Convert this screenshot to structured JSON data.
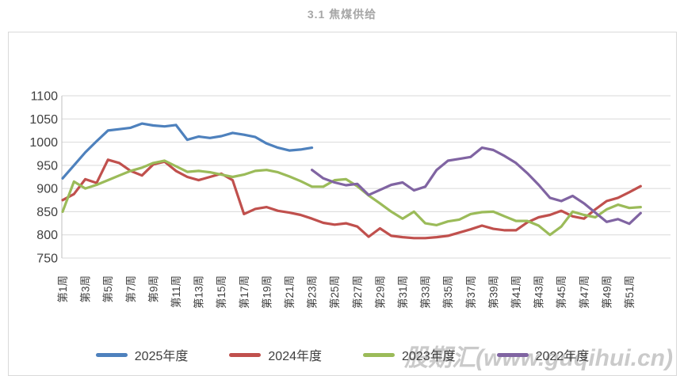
{
  "section_title": "3.1 焦煤供给",
  "watermark": "股期汇(www.guqihui.cn)",
  "chart_data": {
    "type": "line",
    "title": "3.1 焦煤供给",
    "xlabel": "",
    "ylabel": "",
    "ylim": [
      750,
      1100
    ],
    "y_ticks": [
      750,
      800,
      850,
      900,
      950,
      1000,
      1050,
      1100
    ],
    "x_weeks_total": 52,
    "x_tick_labels": [
      "第1周",
      "第3周",
      "第5周",
      "第7周",
      "第9周",
      "第11周",
      "第13周",
      "第15周",
      "第17周",
      "第19周",
      "第21周",
      "第23周",
      "第25周",
      "第27周",
      "第29周",
      "第31周",
      "第33周",
      "第35周",
      "第37周",
      "第39周",
      "第41周",
      "第43周",
      "第45周",
      "第47周",
      "第49周",
      "第51周"
    ],
    "grid": true,
    "legend_position": "bottom",
    "axis_color": "#bfbfbf",
    "grid_color": "#d9d9d9",
    "tick_label_color": "#404040",
    "series": [
      {
        "name": "2025年度",
        "color": "#4E81BD",
        "start_week": 1,
        "values": [
          922,
          950,
          978,
          1002,
          1025,
          1028,
          1031,
          1040,
          1036,
          1034,
          1037,
          1005,
          1012,
          1009,
          1013,
          1020,
          1016,
          1011,
          997,
          988,
          982,
          984,
          988
        ]
      },
      {
        "name": "2024年度",
        "color": "#C0504D",
        "start_week": 1,
        "values": [
          875,
          888,
          920,
          912,
          962,
          955,
          938,
          928,
          952,
          958,
          938,
          925,
          918,
          925,
          932,
          918,
          845,
          856,
          860,
          852,
          848,
          843,
          835,
          826,
          822,
          825,
          818,
          796,
          814,
          798,
          795,
          793,
          793,
          795,
          798,
          805,
          812,
          820,
          813,
          810,
          810,
          827,
          838,
          843,
          852,
          840,
          835,
          855,
          873,
          880,
          892,
          905
        ]
      },
      {
        "name": "2023年度",
        "color": "#9BBB59",
        "start_week": 1,
        "values": [
          850,
          915,
          900,
          908,
          918,
          928,
          938,
          945,
          955,
          960,
          948,
          936,
          938,
          935,
          930,
          925,
          930,
          938,
          940,
          935,
          926,
          916,
          904,
          904,
          918,
          920,
          905,
          885,
          868,
          850,
          835,
          850,
          825,
          821,
          829,
          833,
          845,
          849,
          850,
          840,
          830,
          830,
          820,
          800,
          818,
          850,
          843,
          838,
          855,
          865,
          858,
          860
        ]
      },
      {
        "name": "2022年度",
        "color": "#8064A2",
        "start_week": 23,
        "values": [
          940,
          922,
          913,
          907,
          910,
          886,
          897,
          908,
          913,
          896,
          904,
          940,
          960,
          964,
          968,
          988,
          983,
          970,
          955,
          933,
          908,
          880,
          873,
          884,
          868,
          848,
          828,
          834,
          824,
          847
        ]
      }
    ]
  }
}
